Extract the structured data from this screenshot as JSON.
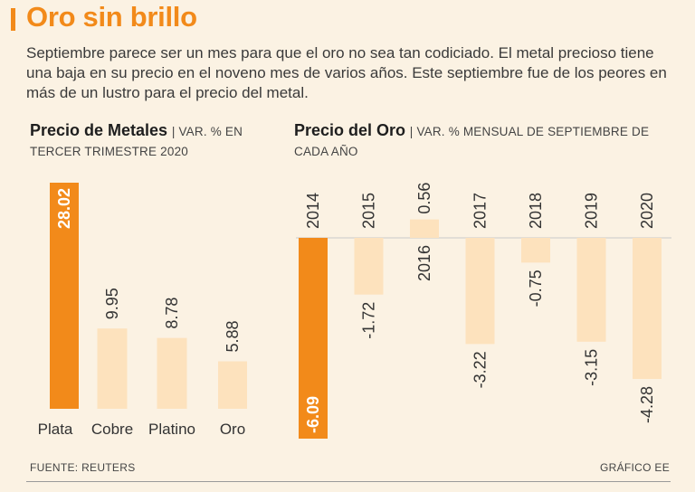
{
  "header": {
    "title": "Oro sin brillo",
    "intro": "Septiembre parece ser un mes para que el oro no sea tan codiciado. El metal precioso tiene una baja en su precio en el noveno mes de varios años. Este septiembre fue de los peores en más de un lustro para el precio del metal."
  },
  "colors": {
    "accent": "#f28a1a",
    "light_bar": "#fde2bd",
    "background": "#fbf2e3"
  },
  "chart_data": [
    {
      "type": "bar",
      "title": "Precio de Metales",
      "subtitle": "| VAR. % EN TERCER TRIMESTRE 2020",
      "categories": [
        "Plata",
        "Cobre",
        "Platino",
        "Oro"
      ],
      "values": [
        28.02,
        9.95,
        8.78,
        5.88
      ],
      "value_labels": [
        "28.02",
        "9.95",
        "8.78",
        "5.88"
      ],
      "highlight_index": 0,
      "ylim": [
        0,
        28.02
      ]
    },
    {
      "type": "bar",
      "title": "Precio del Oro",
      "subtitle": "| VAR. % MENSUAL DE SEPTIEMBRE DE CADA AÑO",
      "categories": [
        "2014",
        "2015",
        "2016",
        "2017",
        "2018",
        "2019",
        "2020"
      ],
      "values": [
        -6.09,
        -1.72,
        0.56,
        -3.22,
        -0.75,
        -3.15,
        -4.28
      ],
      "value_labels": [
        "-6.09",
        "-1.72",
        "0.56",
        "-3.22",
        "-0.75",
        "-3.15",
        "-4.28"
      ],
      "highlight_index": 0,
      "ylim": [
        -6.09,
        0.56
      ]
    }
  ],
  "footer": {
    "source": "FUENTE: REUTERS",
    "credit": "GRÁFICO EE"
  }
}
